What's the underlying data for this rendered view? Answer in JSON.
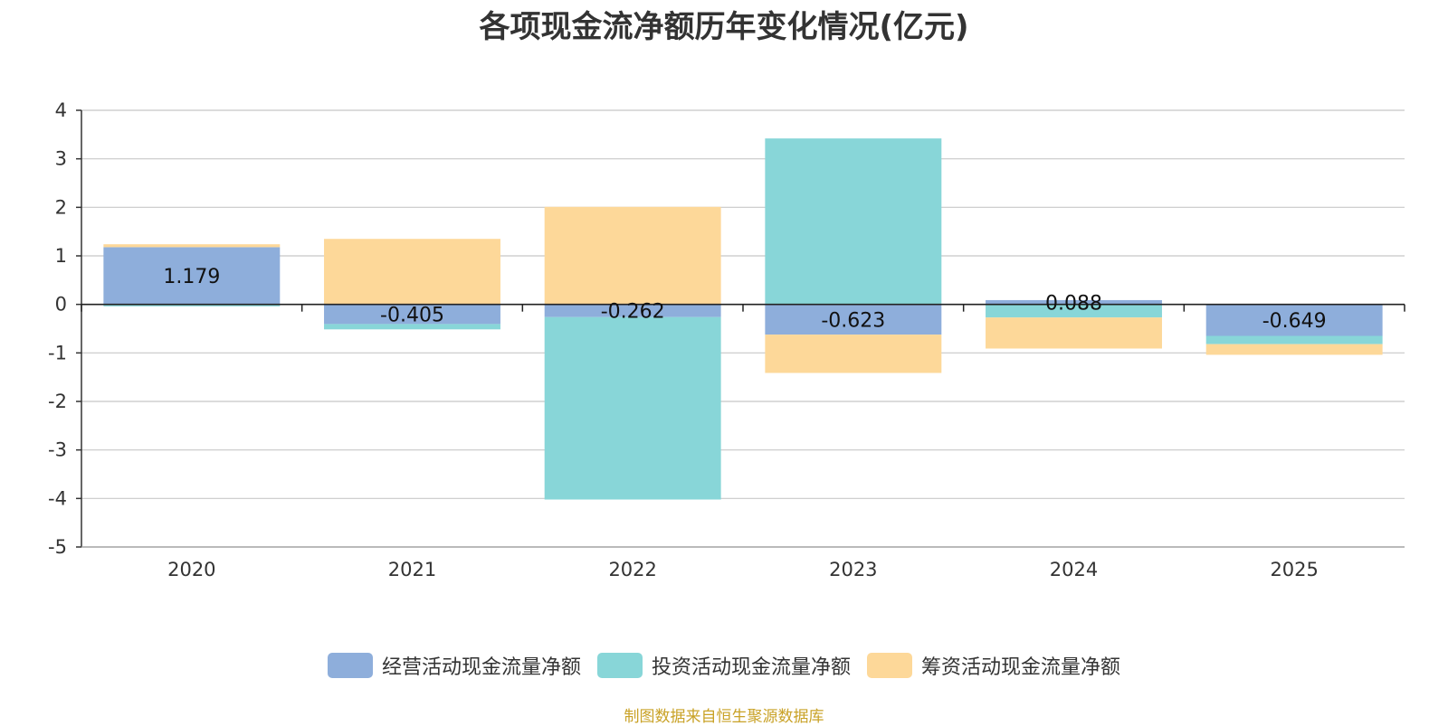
{
  "chart_data": {
    "type": "bar",
    "stacked": true,
    "title": "各项现金流净额历年变化情况(亿元)",
    "categories": [
      "2020",
      "2021",
      "2022",
      "2023",
      "2024",
      "2025"
    ],
    "ylim": [
      -5,
      4
    ],
    "yticks": [
      4,
      3,
      2,
      1,
      0,
      -1,
      -2,
      -3,
      -4,
      -5
    ],
    "grid": true,
    "legend_position": "bottom",
    "series": [
      {
        "name": "经营活动现金流量净额",
        "color": "#8eaedb",
        "values": [
          1.179,
          -0.405,
          -0.262,
          -0.623,
          0.088,
          -0.649
        ],
        "labels": [
          "1.179",
          "-0.405",
          "-0.262",
          "-0.623",
          "0.088",
          "-0.649"
        ]
      },
      {
        "name": "投资活动现金流量净额",
        "color": "#88d6d8",
        "values": [
          -0.04,
          -0.11,
          -3.76,
          3.42,
          -0.27,
          -0.17
        ]
      },
      {
        "name": "筹资活动现金流量净额",
        "color": "#fdd899",
        "values": [
          0.06,
          1.35,
          2.01,
          -0.79,
          -0.64,
          -0.22
        ]
      }
    ],
    "source": "制图数据来自恒生聚源数据库"
  }
}
